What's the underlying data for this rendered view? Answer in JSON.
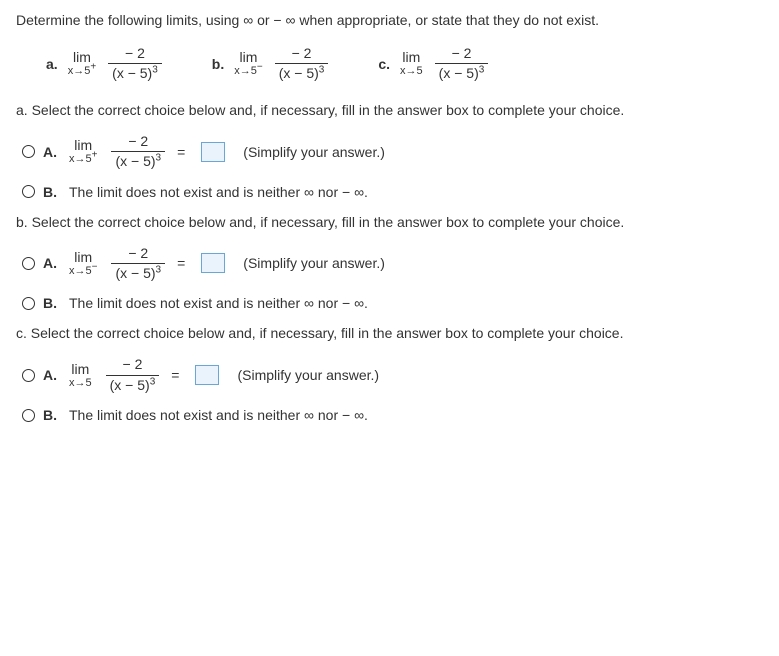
{
  "instruction": "Determine the following limits, using ∞ or − ∞ when appropriate, or state that they do not exist.",
  "limits": {
    "a": {
      "label": "a.",
      "limword": "lim",
      "approach": "x→5",
      "supscript": "+",
      "numerator": "− 2",
      "denominator_base": "(x − 5)",
      "denominator_exp": "3"
    },
    "b": {
      "label": "b.",
      "limword": "lim",
      "approach": "x→5",
      "supscript": "−",
      "numerator": "− 2",
      "denominator_base": "(x − 5)",
      "denominator_exp": "3"
    },
    "c": {
      "label": "c.",
      "limword": "lim",
      "approach": "x→5",
      "supscript": "",
      "numerator": "− 2",
      "denominator_base": "(x − 5)",
      "denominator_exp": "3"
    }
  },
  "sections": {
    "a": {
      "prompt": "a. Select the correct choice below and, if necessary, fill in the answer box to complete your choice.",
      "optA_label": "A.",
      "optA_limword": "lim",
      "optA_approach": "x→5",
      "optA_sup": "+",
      "optA_num": "− 2",
      "optA_den_base": "(x − 5)",
      "optA_den_exp": "3",
      "optA_eq": "=",
      "optA_hint": "(Simplify your answer.)",
      "optB_label": "B.",
      "optB_text": "The limit does not exist and is neither ∞ nor − ∞."
    },
    "b": {
      "prompt": "b. Select the correct choice below and, if necessary, fill in the answer box to complete your choice.",
      "optA_label": "A.",
      "optA_limword": "lim",
      "optA_approach": "x→5",
      "optA_sup": "−",
      "optA_num": "− 2",
      "optA_den_base": "(x − 5)",
      "optA_den_exp": "3",
      "optA_eq": "=",
      "optA_hint": "(Simplify your answer.)",
      "optB_label": "B.",
      "optB_text": "The limit does not exist and is neither ∞ nor − ∞."
    },
    "c": {
      "prompt": "c. Select the correct choice below and, if necessary, fill in the answer box to complete your choice.",
      "optA_label": "A.",
      "optA_limword": "lim",
      "optA_approach": "x→5",
      "optA_sup": "",
      "optA_num": "− 2",
      "optA_den_base": "(x − 5)",
      "optA_den_exp": "3",
      "optA_eq": "=",
      "optA_hint": "(Simplify your answer.)",
      "optB_label": "B.",
      "optB_text": "The limit does not exist and is neither ∞ nor − ∞."
    }
  }
}
